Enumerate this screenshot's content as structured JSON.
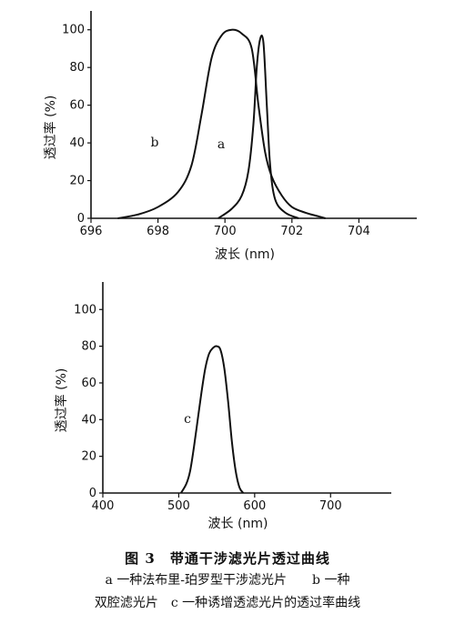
{
  "chart_data": [
    {
      "type": "line",
      "xlabel": "波长 (nm)",
      "ylabel": "透过率 (%)",
      "xlim": [
        696,
        706
      ],
      "ylim": [
        0,
        110
      ],
      "x_ticks": [
        696,
        698,
        700,
        702,
        704
      ],
      "y_ticks": [
        0,
        20,
        40,
        60,
        80,
        100
      ],
      "x_tick_labels": [
        "696",
        "698",
        "700",
        "702",
        "704"
      ],
      "y_tick_labels": [
        "0",
        "20",
        "40",
        "60",
        "80",
        "100"
      ],
      "grid": false,
      "series": [
        {
          "name": "b",
          "x": [
            696.8,
            697.4,
            698.0,
            698.6,
            699.0,
            699.3,
            699.6,
            699.9,
            700.2,
            700.5,
            700.8,
            701.0,
            701.2,
            701.4,
            701.7,
            702.0,
            702.4,
            702.8,
            703.0
          ],
          "y": [
            0,
            2,
            6,
            14,
            28,
            55,
            85,
            97,
            100,
            98,
            90,
            60,
            35,
            22,
            12,
            6,
            3,
            1,
            0
          ]
        },
        {
          "name": "a",
          "x": [
            699.8,
            700.2,
            700.5,
            700.7,
            700.85,
            700.95,
            701.05,
            701.15,
            701.25,
            701.35,
            701.5,
            701.8,
            702.2
          ],
          "y": [
            0,
            5,
            12,
            25,
            50,
            80,
            95,
            93,
            60,
            28,
            10,
            3,
            0
          ]
        }
      ]
    },
    {
      "type": "line",
      "xlabel": "波长 (nm)",
      "ylabel": "透过率 (%)",
      "xlim": [
        400,
        780
      ],
      "ylim": [
        0,
        115
      ],
      "x_ticks": [
        400,
        500,
        600,
        700
      ],
      "y_ticks": [
        0,
        20,
        40,
        60,
        80,
        100
      ],
      "x_tick_labels": [
        "400",
        "500",
        "600",
        "700"
      ],
      "y_tick_labels": [
        "0",
        "20",
        "40",
        "60",
        "80",
        "100"
      ],
      "grid": false,
      "series": [
        {
          "name": "c",
          "x": [
            503,
            510,
            515,
            520,
            525,
            530,
            535,
            540,
            545,
            550,
            555,
            560,
            565,
            570,
            575,
            580,
            585
          ],
          "y": [
            0,
            5,
            12,
            25,
            40,
            55,
            68,
            76,
            79,
            80,
            78,
            68,
            50,
            28,
            12,
            3,
            0
          ]
        }
      ]
    }
  ],
  "caption": {
    "title": "图 3　带通干涉滤光片透过曲线",
    "line1": "a 一种法布里-珀罗型干涉滤光片　　b 一种",
    "line2": "双腔滤光片　c 一种诱增透滤光片的透过率曲线"
  }
}
